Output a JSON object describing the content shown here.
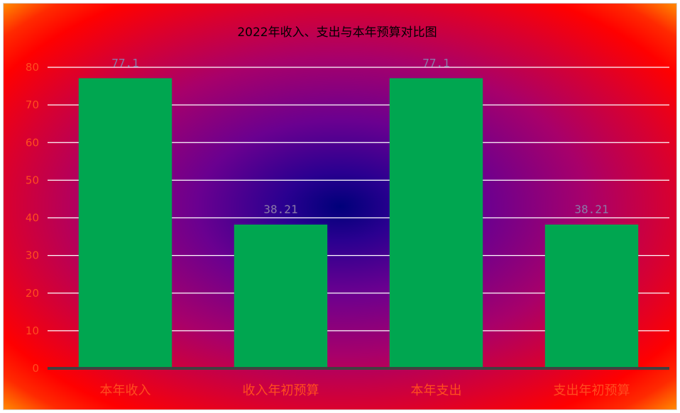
{
  "chart_data": {
    "type": "bar",
    "title": "2022年收入、支出与本年预算对比图",
    "categories": [
      "本年收入",
      "收入年初预算",
      "本年支出",
      "支出年初预算"
    ],
    "values": [
      77.1,
      38.21,
      77.1,
      38.21
    ],
    "data_labels": [
      "77.1",
      "38.21",
      "77.1",
      "38.21"
    ],
    "ylim": [
      0,
      80
    ],
    "yticks": [
      0,
      10,
      20,
      30,
      40,
      50,
      60,
      70,
      80
    ],
    "grid": true,
    "legend": "none",
    "colors": {
      "bar": "#00a650",
      "gridline": "#ffffff",
      "axis": "#404040",
      "tick_text": "#ff4d1f",
      "data_label": "#8a7aa8",
      "title": "#000000"
    }
  }
}
